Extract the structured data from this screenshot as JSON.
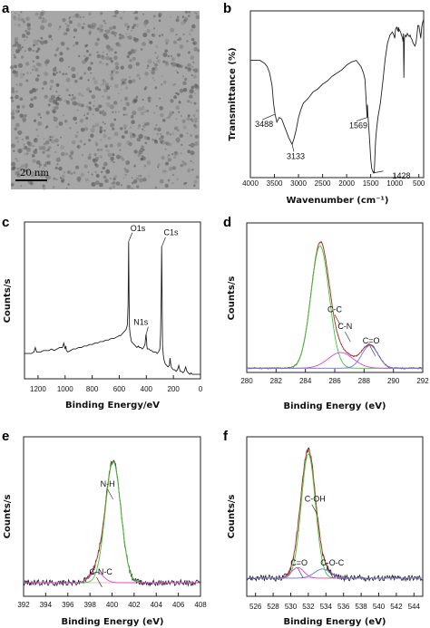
{
  "colors": {
    "data": "#222222",
    "fit_green": "#33cc33",
    "fit_red": "#dd3333",
    "fit_pink": "#dd44cc",
    "fit_blue": "#6677ee",
    "image_bg": "#a7a7a7"
  },
  "chart_data": [
    {
      "panel": "a",
      "type": "image",
      "scale_bar_label": "20 nm"
    },
    {
      "panel": "b",
      "type": "line",
      "xlabel": "Wavenumber (cm⁻¹)",
      "ylabel": "Transmittance (%)",
      "xlim": [
        4000,
        400
      ],
      "xticks": [
        4000,
        3500,
        3000,
        2500,
        2000,
        1500,
        1000,
        500
      ],
      "ylim": [
        0,
        100
      ],
      "series": [
        {
          "x": [
            4000,
            3900,
            3800,
            3700,
            3650,
            3600,
            3550,
            3520,
            3488,
            3450,
            3400,
            3350,
            3300,
            3250,
            3200,
            3150,
            3133,
            3100,
            3050,
            3000,
            2950,
            2900,
            2800,
            2700,
            2600,
            2500,
            2400,
            2300,
            2200,
            2100,
            2000,
            1900,
            1800,
            1700,
            1650,
            1620,
            1600,
            1585,
            1575,
            1569,
            1560,
            1540,
            1520,
            1500,
            1480,
            1460,
            1440,
            1435,
            1428,
            1420,
            1410,
            1400,
            1380,
            1350,
            1300,
            1250,
            1200,
            1150,
            1100,
            1050,
            1020,
            1000,
            990,
            980,
            960,
            940,
            930,
            925,
            920,
            915,
            900,
            880,
            860,
            840,
            830,
            820,
            810,
            800,
            780,
            760,
            740,
            720,
            700,
            680,
            660,
            640,
            620,
            600,
            580,
            560,
            540,
            520,
            500,
            480,
            460,
            440,
            420,
            400
          ],
          "y": [
            74,
            74,
            74,
            72,
            70,
            66,
            58,
            47,
            40,
            35,
            38,
            37,
            33,
            29,
            25,
            22,
            21,
            24,
            30,
            38,
            43,
            47,
            50,
            54,
            56,
            59,
            61,
            64,
            66,
            68,
            71,
            73,
            74,
            70,
            66,
            62,
            52,
            44,
            38,
            46,
            40,
            32,
            22,
            12,
            6,
            4,
            3,
            4,
            3,
            8,
            15,
            22,
            30,
            38,
            47,
            60,
            75,
            85,
            90,
            92,
            90,
            88,
            92,
            94,
            95,
            93,
            94,
            95,
            92,
            94,
            93,
            92,
            90,
            88,
            86,
            91,
            63,
            88,
            90,
            89,
            91,
            90,
            89,
            90,
            88,
            87,
            85,
            84,
            83,
            85,
            90,
            96,
            96,
            92,
            88,
            95,
            98,
            100
          ]
        }
      ],
      "annotations": [
        {
          "label": "3488",
          "x": 3488,
          "y": 40
        },
        {
          "label": "3133",
          "x": 3133,
          "y": 21
        },
        {
          "label": "1569",
          "x": 1569,
          "y": 38
        },
        {
          "label": "1428",
          "x": 1428,
          "y": 3
        }
      ]
    },
    {
      "panel": "c",
      "type": "line",
      "xlabel": "Binding Energy/eV",
      "ylabel": "Counts/s",
      "xlim": [
        1300,
        0
      ],
      "xticks": [
        1200,
        1000,
        800,
        600,
        400,
        200,
        0
      ],
      "ylim": [
        0,
        100
      ],
      "series": [
        {
          "x": [
            1300,
            1270,
            1250,
            1230,
            1220,
            1210,
            1200,
            1180,
            1160,
            1140,
            1120,
            1100,
            1080,
            1060,
            1040,
            1020,
            1010,
            1000,
            995,
            990,
            980,
            960,
            940,
            920,
            900,
            880,
            860,
            840,
            820,
            800,
            780,
            760,
            740,
            720,
            700,
            680,
            660,
            640,
            620,
            600,
            590,
            580,
            570,
            560,
            550,
            540,
            535,
            531,
            528,
            525,
            520,
            510,
            500,
            490,
            480,
            470,
            460,
            450,
            440,
            430,
            420,
            410,
            405,
            402,
            399,
            396,
            393,
            390,
            380,
            370,
            360,
            350,
            340,
            330,
            320,
            310,
            300,
            295,
            290,
            287,
            285,
            282,
            280,
            275,
            270,
            260,
            250,
            240,
            230,
            225,
            220,
            215,
            210,
            200,
            190,
            180,
            170,
            160,
            150,
            140,
            130,
            120,
            110,
            100,
            90,
            80,
            70,
            60,
            50,
            40,
            30,
            20,
            10,
            0
          ],
          "y": [
            17,
            17,
            17,
            18,
            21,
            18,
            18,
            18,
            19,
            19,
            19,
            20,
            19,
            20,
            21,
            21,
            24,
            20,
            22,
            19,
            18,
            19,
            20,
            20,
            21,
            21,
            22,
            22,
            23,
            23,
            24,
            24,
            25,
            25,
            26,
            26,
            27,
            27,
            28,
            29,
            29,
            30,
            31,
            32,
            33,
            36,
            50,
            92,
            60,
            35,
            30,
            25,
            24,
            23,
            22,
            21,
            22,
            21,
            21,
            20,
            21,
            23,
            28,
            30,
            26,
            22,
            20,
            20,
            20,
            19,
            19,
            18,
            18,
            18,
            17,
            18,
            20,
            30,
            55,
            89,
            70,
            40,
            22,
            16,
            13,
            10,
            9,
            8,
            9,
            14,
            10,
            8,
            7,
            6,
            6,
            5,
            6,
            9,
            5,
            5,
            4,
            5,
            8,
            5,
            4,
            3,
            4,
            3,
            3,
            3,
            3,
            3,
            3,
            3
          ]
        }
      ],
      "annotations": [
        {
          "label": "O1s",
          "x": 531,
          "y": 92
        },
        {
          "label": "C1s",
          "x": 285,
          "y": 89
        },
        {
          "label": "N1s",
          "x": 400,
          "y": 30
        }
      ]
    },
    {
      "panel": "d",
      "type": "line",
      "xlabel": "Binding Energy (eV)",
      "ylabel": "Counts/s",
      "xlim": [
        280,
        292
      ],
      "xticks": [
        280,
        282,
        284,
        286,
        288,
        290,
        292
      ],
      "ylim": [
        0,
        100
      ],
      "peaks": [
        {
          "label": "C-C",
          "center": 285.0,
          "height": 86,
          "width": 0.62,
          "color": "#33cc33"
        },
        {
          "label": "C-N",
          "center": 286.4,
          "height": 11,
          "width": 0.85,
          "color": "#dd44cc"
        },
        {
          "label": "C=O",
          "center": 288.4,
          "height": 16,
          "width": 0.55,
          "color": "#6677ee"
        }
      ],
      "baseline": 3,
      "annotations": [
        {
          "label": "C-C",
          "x": 286.0,
          "y": 40
        },
        {
          "label": "C-N",
          "x": 286.7,
          "y": 28
        },
        {
          "label": "C=O",
          "x": 288.4,
          "y": 18
        }
      ]
    },
    {
      "panel": "e",
      "type": "line",
      "xlabel": "Binding Energy (eV)",
      "ylabel": "Counts/s",
      "xlim": [
        392,
        408
      ],
      "xticks": [
        392,
        394,
        396,
        398,
        400,
        402,
        404,
        406,
        408
      ],
      "ylim": [
        0,
        100
      ],
      "peaks": [
        {
          "label": "N-H",
          "center": 400.1,
          "height": 80,
          "width": 0.7,
          "color": "#33cc33"
        },
        {
          "label": "C-N-C",
          "center": 398.6,
          "height": 7,
          "width": 0.6,
          "color": "#dd44cc"
        }
      ],
      "baseline": 9,
      "annotations": [
        {
          "label": "N-H",
          "x": 399.6,
          "y": 70
        },
        {
          "label": "C-N-C",
          "x": 398.6,
          "y": 12
        }
      ]
    },
    {
      "panel": "f",
      "type": "line",
      "xlabel": "Binding Energy (eV)",
      "ylabel": "Counts/s",
      "xlim": [
        525,
        545
      ],
      "xticks": [
        526,
        528,
        530,
        532,
        534,
        536,
        538,
        540,
        542,
        544
      ],
      "ylim": [
        0,
        100
      ],
      "peaks": [
        {
          "label": "C-OH",
          "center": 532.0,
          "height": 82,
          "width": 0.8,
          "color": "#33cc33"
        },
        {
          "label": "C=O",
          "center": 530.8,
          "height": 7,
          "width": 0.7,
          "color": "#dd44cc"
        },
        {
          "label": "C-O-C",
          "center": 533.6,
          "height": 6,
          "width": 0.9,
          "color": "#6677ee"
        }
      ],
      "baseline": 12,
      "annotations": [
        {
          "label": "C-OH",
          "x": 532.4,
          "y": 60
        },
        {
          "label": "C=O",
          "x": 530.8,
          "y": 18
        },
        {
          "label": "C-O-C",
          "x": 534.2,
          "y": 18
        }
      ]
    }
  ]
}
